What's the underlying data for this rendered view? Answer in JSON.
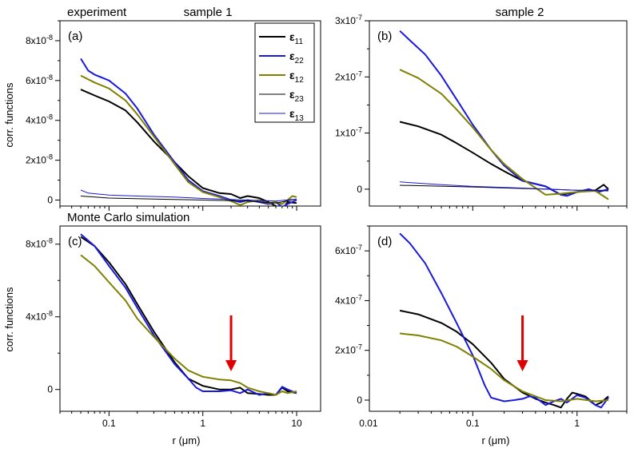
{
  "figure": {
    "row_labels": [
      "experiment",
      "Monte Carlo simulation"
    ],
    "column_titles": [
      "sample 1",
      "sample 2"
    ],
    "ylabel": "corr. functions",
    "xlabel": "r (μm)",
    "legend": [
      {
        "symbol": "ε",
        "sub": "11",
        "color": "#000000",
        "width": 2
      },
      {
        "symbol": "ε",
        "sub": "22",
        "color": "#1a1adc",
        "width": 2
      },
      {
        "symbol": "ε",
        "sub": "12",
        "color": "#808000",
        "width": 2
      },
      {
        "symbol": "ε",
        "sub": "23",
        "color": "#000000",
        "width": 1
      },
      {
        "symbol": "ε",
        "sub": "13",
        "color": "#1a1adc",
        "width": 1
      }
    ],
    "legend_placement": "top-right of panel (a)"
  },
  "chart_data": [
    {
      "id": "a",
      "type": "line",
      "panel_label": "(a)",
      "column_title": "sample 1",
      "row_label": "experiment",
      "xscale": "log",
      "xlim": [
        0.03,
        18
      ],
      "ylim": [
        -3e-09,
        9e-08
      ],
      "xticks": [],
      "yticks": [
        {
          "value": 0,
          "label": "0"
        },
        {
          "value": 2e-08,
          "label": "2x10-8"
        },
        {
          "value": 4e-08,
          "label": "4x10-8"
        },
        {
          "value": 6e-08,
          "label": "6x10-8"
        },
        {
          "value": 8e-08,
          "label": "8x10-8"
        }
      ],
      "series": [
        {
          "name": "ε11",
          "color": "#000000",
          "width": 2,
          "x": [
            0.05,
            0.07,
            0.1,
            0.15,
            0.2,
            0.3,
            0.5,
            0.7,
            1.0,
            1.5,
            2.0,
            2.5,
            3.0,
            4.0,
            5.0,
            6.0,
            7.0,
            8.0,
            10.0
          ],
          "y": [
            5.55e-08,
            5.25e-08,
            4.95e-08,
            4.5e-08,
            3.9e-08,
            2.95e-08,
            1.9e-08,
            1.2e-08,
            6e-09,
            3.5e-09,
            3e-09,
            1e-09,
            2e-09,
            1e-09,
            -1e-09,
            -3e-09,
            -5e-09,
            -1e-09,
            -1.5e-09
          ]
        },
        {
          "name": "ε22",
          "color": "#1a1adc",
          "width": 2,
          "x": [
            0.05,
            0.06,
            0.07,
            0.1,
            0.15,
            0.2,
            0.3,
            0.5,
            0.7,
            1.0,
            1.5,
            2.0,
            2.5,
            3.0,
            4.0,
            5.0,
            6.0,
            7.0,
            8.0,
            10.0
          ],
          "y": [
            7.1e-08,
            6.5e-08,
            6.3e-08,
            6e-08,
            5.35e-08,
            4.6e-08,
            3.3e-08,
            1.9e-08,
            1e-08,
            4.5e-09,
            2e-09,
            0.0,
            -1e-09,
            0.0,
            -1e-09,
            -2e-09,
            -1e-09,
            -3.5e-09,
            -2e-09,
            0.0
          ]
        },
        {
          "name": "ε12",
          "color": "#808000",
          "width": 2,
          "x": [
            0.05,
            0.07,
            0.1,
            0.15,
            0.2,
            0.3,
            0.5,
            0.7,
            1.0,
            1.5,
            2.0,
            2.5,
            3.0,
            4.0,
            5.0,
            6.0,
            7.0,
            8.0,
            9.0,
            10.0
          ],
          "y": [
            6.25e-08,
            5.9e-08,
            5.6e-08,
            5e-08,
            4.3e-08,
            3.2e-08,
            1.8e-08,
            9e-09,
            4e-09,
            1.5e-09,
            -5e-10,
            -2.5e-09,
            -1e-09,
            0.0,
            -1.5e-09,
            -1e-09,
            -2e-09,
            0.0,
            2e-09,
            1.5e-09
          ]
        },
        {
          "name": "ε23",
          "color": "#000000",
          "width": 1,
          "x": [
            0.05,
            0.1,
            0.3,
            1.0,
            3.0,
            6.0,
            10.0
          ],
          "y": [
            2e-09,
            1e-09,
            5e-10,
            0.0,
            -5e-10,
            -1.5e-09,
            5e-10
          ]
        },
        {
          "name": "ε13",
          "color": "#1a1adc",
          "width": 1,
          "x": [
            0.05,
            0.06,
            0.1,
            0.2,
            0.5,
            1.0,
            3.0,
            6.0,
            10.0
          ],
          "y": [
            5e-09,
            3.5e-09,
            2.5e-09,
            2e-09,
            1.5e-09,
            8e-10,
            0.0,
            -5e-10,
            5e-10
          ]
        }
      ]
    },
    {
      "id": "b",
      "type": "line",
      "panel_label": "(b)",
      "column_title": "sample 2",
      "row_label": "",
      "xscale": "log",
      "xlim": [
        0.0102,
        3.0
      ],
      "ylim": [
        -3e-08,
        3e-07
      ],
      "xticks": [],
      "yticks": [
        {
          "value": 0,
          "label": "0"
        },
        {
          "value": 1e-07,
          "label": "1x10-7"
        },
        {
          "value": 2e-07,
          "label": "2x10-7"
        },
        {
          "value": 3e-07,
          "label": "3x10-7"
        }
      ],
      "series": [
        {
          "name": "ε11",
          "color": "#000000",
          "width": 2,
          "x": [
            0.02,
            0.03,
            0.05,
            0.07,
            0.1,
            0.15,
            0.2,
            0.3,
            0.5,
            0.7,
            1.0,
            1.5,
            1.8,
            2.0
          ],
          "y": [
            1.2e-07,
            1.12e-07,
            9.7e-08,
            8.2e-08,
            6.5e-08,
            4.5e-08,
            3.2e-08,
            1.5e-08,
            5e-09,
            -1e-08,
            -5e-09,
            -2e-09,
            8e-09,
            0.0
          ]
        },
        {
          "name": "ε22",
          "color": "#1a1adc",
          "width": 2,
          "x": [
            0.02,
            0.025,
            0.035,
            0.05,
            0.07,
            0.1,
            0.15,
            0.2,
            0.3,
            0.5,
            0.7,
            0.8,
            1.0,
            1.3,
            1.6,
            2.0
          ],
          "y": [
            2.82e-07,
            2.65e-07,
            2.4e-07,
            2.02e-07,
            1.6e-07,
            1.15e-07,
            7e-08,
            4.2e-08,
            1.5e-08,
            5e-09,
            -1e-08,
            -1.2e-08,
            -5e-09,
            0.0,
            -5e-09,
            0.0
          ]
        },
        {
          "name": "ε12",
          "color": "#808000",
          "width": 2,
          "x": [
            0.02,
            0.03,
            0.05,
            0.07,
            0.1,
            0.15,
            0.2,
            0.3,
            0.5,
            0.7,
            1.0,
            1.5,
            2.0
          ],
          "y": [
            2.13e-07,
            1.98e-07,
            1.7e-07,
            1.42e-07,
            1.1e-07,
            7e-08,
            4.5e-08,
            1.8e-08,
            -1e-08,
            -8e-09,
            -5e-09,
            -3e-09,
            -1.8e-08
          ]
        },
        {
          "name": "ε23",
          "color": "#000000",
          "width": 1,
          "x": [
            0.02,
            0.1,
            0.5,
            1.0,
            2.0
          ],
          "y": [
            7e-09,
            4e-09,
            0.0,
            -2e-09,
            -3e-09
          ]
        },
        {
          "name": "ε13",
          "color": "#1a1adc",
          "width": 1,
          "x": [
            0.02,
            0.05,
            0.1,
            0.3,
            1.0,
            2.0
          ],
          "y": [
            1.3e-08,
            8e-09,
            5e-09,
            2e-09,
            -2e-09,
            -2e-09
          ]
        }
      ]
    },
    {
      "id": "c",
      "type": "line",
      "panel_label": "(c)",
      "column_title": "",
      "row_label": "Monte Carlo simulation",
      "xscale": "log",
      "xlim": [
        0.03,
        18
      ],
      "ylim": [
        -1.2e-08,
        9e-08
      ],
      "xticks": [
        {
          "value": 0.1,
          "label": "0.1"
        },
        {
          "value": 1,
          "label": "1"
        },
        {
          "value": 10,
          "label": "10"
        }
      ],
      "yticks": [
        {
          "value": 0,
          "label": "0"
        },
        {
          "value": 4e-08,
          "label": "4x10-8"
        },
        {
          "value": 8e-08,
          "label": "8x10-8"
        }
      ],
      "arrow_at_x": 2.0,
      "series": [
        {
          "name": "ε11",
          "color": "#000000",
          "width": 2,
          "x": [
            0.05,
            0.07,
            0.1,
            0.15,
            0.2,
            0.3,
            0.5,
            0.7,
            1.0,
            1.5,
            2.0,
            2.5,
            3.0,
            4.0,
            5.0,
            6.0,
            7.0,
            8.0,
            10.0
          ],
          "y": [
            8.4e-08,
            7.9e-08,
            7e-08,
            5.8e-08,
            4.7e-08,
            3.2e-08,
            1.5e-08,
            6e-09,
            2e-09,
            0.0,
            0.0,
            1e-09,
            -2e-09,
            -2.5e-09,
            -3e-09,
            -3e-09,
            1e-09,
            -1e-09,
            -2e-09
          ]
        },
        {
          "name": "ε22",
          "color": "#1a1adc",
          "width": 2,
          "x": [
            0.05,
            0.07,
            0.1,
            0.15,
            0.2,
            0.3,
            0.5,
            0.7,
            0.85,
            1.0,
            1.5,
            2.0,
            2.5,
            3.0,
            4.0,
            5.0,
            6.0,
            7.0,
            8.0,
            10.0
          ],
          "y": [
            8.55e-08,
            7.9e-08,
            6.8e-08,
            5.6e-08,
            4.5e-08,
            3e-08,
            1.4e-08,
            6e-09,
            1e-09,
            -1e-09,
            -1e-09,
            -5e-10,
            -2e-09,
            0.0,
            -3e-09,
            -2e-09,
            -3e-09,
            1.5e-09,
            0.0,
            -2e-09
          ]
        },
        {
          "name": "ε12",
          "color": "#808000",
          "width": 2,
          "x": [
            0.05,
            0.07,
            0.1,
            0.15,
            0.2,
            0.3,
            0.5,
            0.7,
            1.0,
            1.5,
            2.0,
            2.5,
            3.0,
            4.0,
            5.0,
            6.0,
            7.0,
            8.0,
            10.0
          ],
          "y": [
            7.4e-08,
            6.8e-08,
            5.9e-08,
            4.9e-08,
            3.9e-08,
            2.9e-08,
            1.7e-08,
            1.05e-08,
            7e-09,
            5.5e-09,
            5e-09,
            3.5e-09,
            1e-09,
            -1e-09,
            -2e-09,
            -3e-09,
            -1e-09,
            -2e-09,
            -1e-09
          ]
        }
      ]
    },
    {
      "id": "d",
      "type": "line",
      "panel_label": "(d)",
      "column_title": "",
      "row_label": "",
      "xscale": "log",
      "xlim": [
        0.0102,
        3.0
      ],
      "ylim": [
        -4.5e-08,
        7e-07
      ],
      "xticks": [
        {
          "value": 0.01,
          "label": "0.01"
        },
        {
          "value": 0.1,
          "label": "0.1"
        },
        {
          "value": 1,
          "label": "1"
        }
      ],
      "yticks": [
        {
          "value": 0,
          "label": "0"
        },
        {
          "value": 2e-07,
          "label": "2x10-7"
        },
        {
          "value": 4e-07,
          "label": "4x10-7"
        },
        {
          "value": 6e-07,
          "label": "6x10-7"
        }
      ],
      "arrow_at_x": 0.3,
      "series": [
        {
          "name": "ε11",
          "color": "#000000",
          "width": 2,
          "x": [
            0.02,
            0.03,
            0.05,
            0.07,
            0.1,
            0.15,
            0.2,
            0.3,
            0.4,
            0.5,
            0.6,
            0.7,
            0.8,
            0.9,
            1.0,
            1.2,
            1.5,
            1.7,
            2.0
          ],
          "y": [
            3.6e-07,
            3.45e-07,
            3.1e-07,
            2.75e-07,
            2.25e-07,
            1.5e-07,
            8.5e-08,
            3e-08,
            5e-09,
            -1e-08,
            -2e-08,
            -3e-08,
            5e-09,
            3e-08,
            2.5e-08,
            1.5e-08,
            -2e-08,
            -1e-08,
            1.5e-08
          ]
        },
        {
          "name": "ε22",
          "color": "#1a1adc",
          "width": 2,
          "x": [
            0.02,
            0.025,
            0.035,
            0.05,
            0.07,
            0.1,
            0.13,
            0.15,
            0.2,
            0.25,
            0.3,
            0.35,
            0.4,
            0.5,
            0.6,
            0.7,
            0.8,
            1.0,
            1.2,
            1.5,
            1.7,
            2.0
          ],
          "y": [
            6.7e-07,
            6.3e-07,
            5.5e-07,
            4.3e-07,
            3.1e-07,
            1.8e-07,
            6e-08,
            1e-08,
            -5e-09,
            0.0,
            5e-09,
            1.5e-08,
            1e-08,
            -2e-08,
            -5e-09,
            5e-09,
            -1e-08,
            2e-08,
            1e-08,
            -2e-08,
            -3e-08,
            1e-08
          ]
        },
        {
          "name": "ε12",
          "color": "#808000",
          "width": 2,
          "x": [
            0.02,
            0.03,
            0.05,
            0.07,
            0.1,
            0.15,
            0.2,
            0.3,
            0.5,
            0.7,
            1.0,
            1.5,
            2.0
          ],
          "y": [
            2.68e-07,
            2.6e-07,
            2.4e-07,
            2.15e-07,
            1.75e-07,
            1.25e-07,
            8e-08,
            3.5e-08,
            0.0,
            -5e-09,
            5e-09,
            -5e-09,
            0.0
          ]
        }
      ]
    }
  ]
}
